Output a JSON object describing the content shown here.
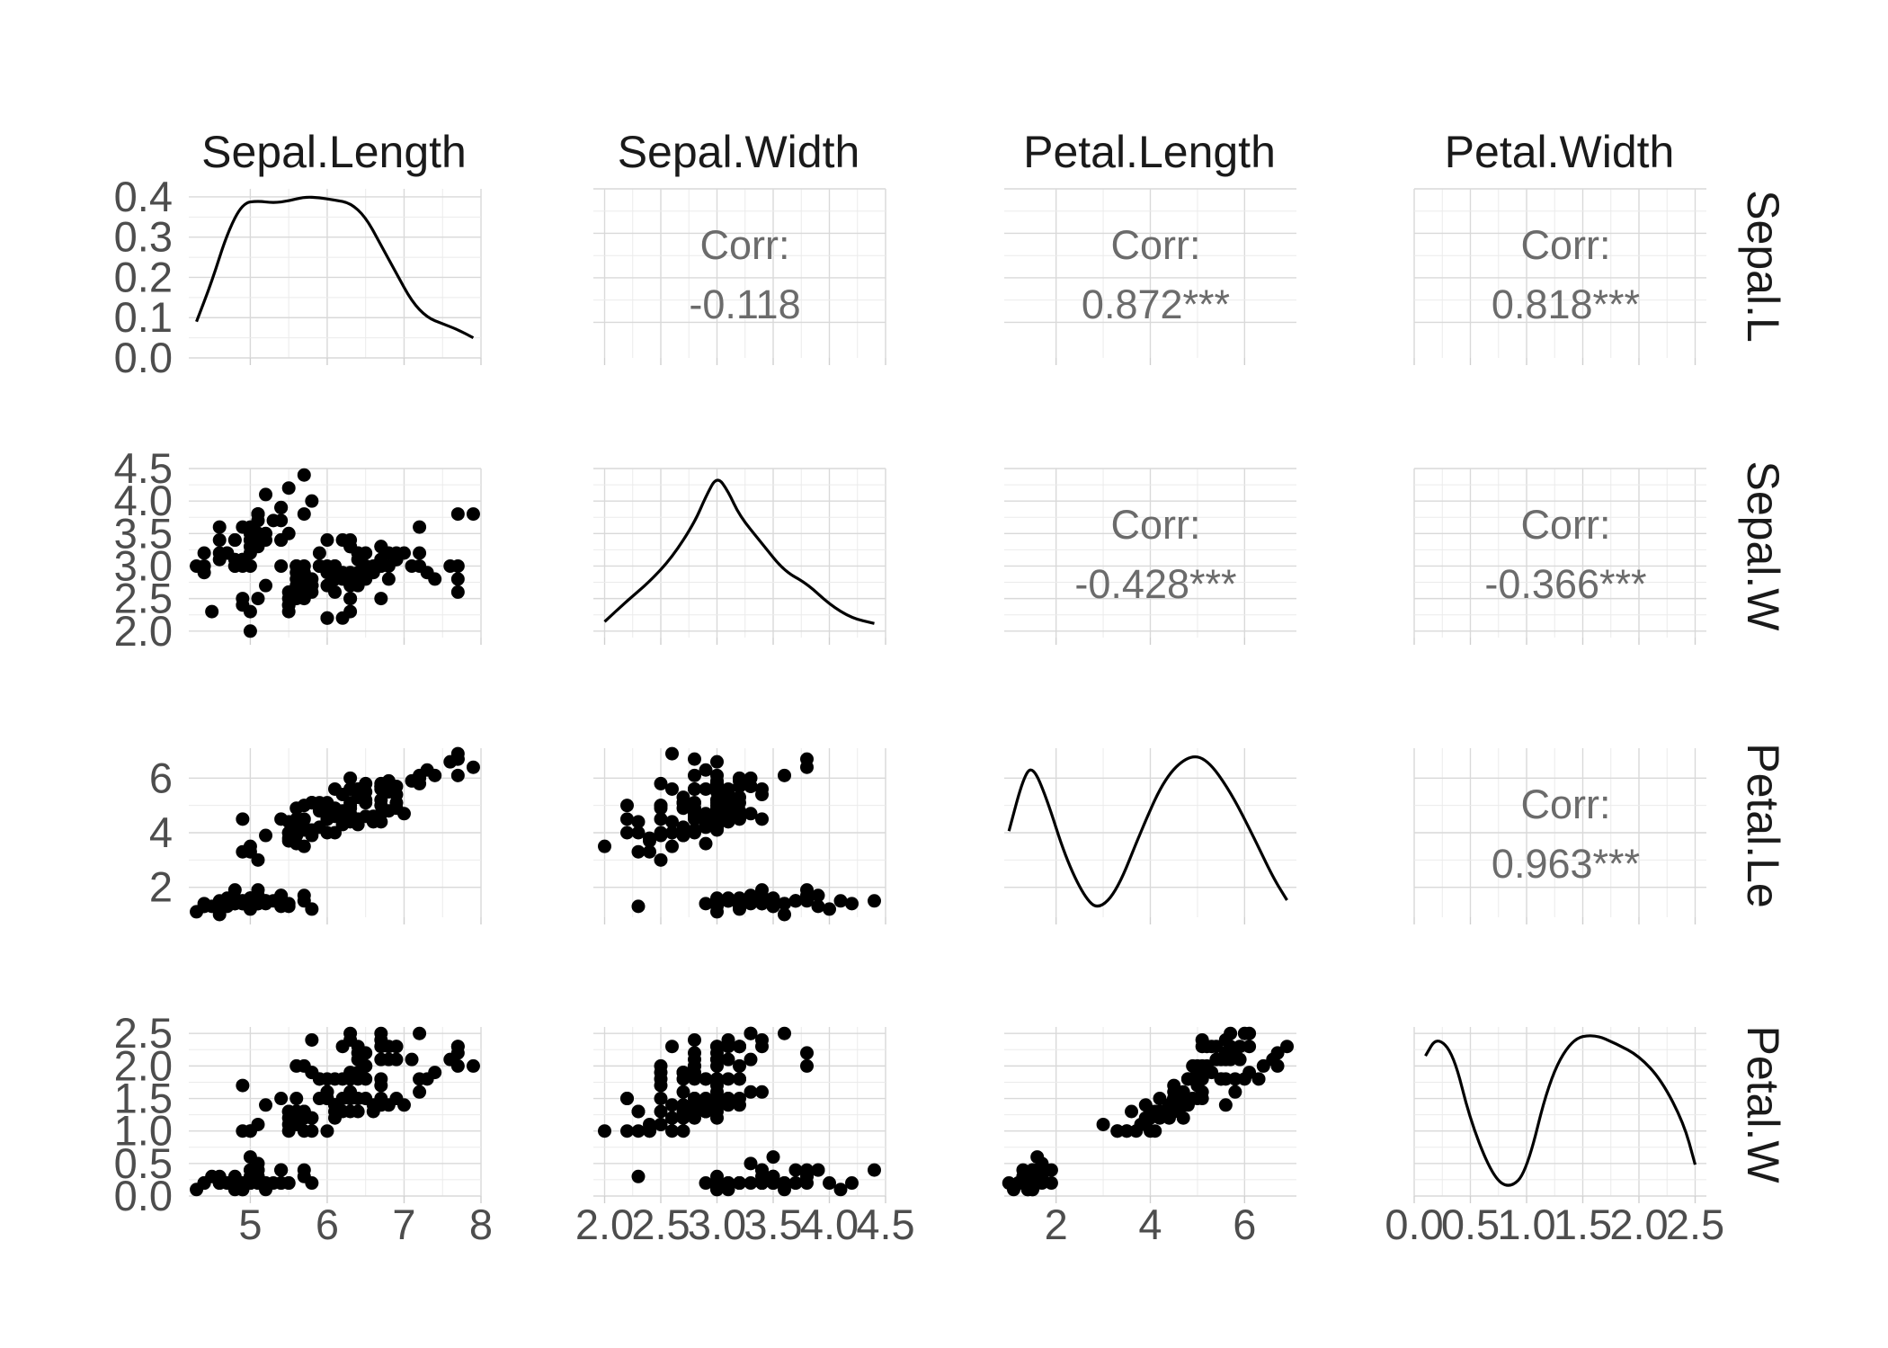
{
  "figure": {
    "variables": [
      "Sepal.Length",
      "Sepal.Width",
      "Petal.Length",
      "Petal.Width"
    ],
    "row_strip_labels": [
      "Sepal.L",
      "Sepal.W",
      "Petal.Le",
      "Petal.W"
    ],
    "corr_label": "Corr:"
  },
  "chart_data": {
    "type": "scatter",
    "title": "",
    "layout": "pairs-matrix",
    "axes": {
      "Sepal.Length": {
        "range": [
          4.2,
          8.0
        ],
        "ticks": [
          5,
          6,
          7,
          8
        ],
        "tick_labels": [
          "5",
          "6",
          "7",
          "8"
        ]
      },
      "Sepal.Width": {
        "range": [
          1.9,
          4.5
        ],
        "ticks": [
          2.0,
          2.5,
          3.0,
          3.5,
          4.0,
          4.5
        ],
        "tick_labels": [
          "2.0",
          "2.5",
          "3.0",
          "3.5",
          "4.0",
          "4.5"
        ]
      },
      "Petal.Length": {
        "range": [
          0.9,
          7.1
        ],
        "ticks": [
          2,
          4,
          6
        ],
        "tick_labels": [
          "2",
          "4",
          "6"
        ]
      },
      "Petal.Width": {
        "range": [
          0.0,
          2.6
        ],
        "ticks": [
          0.0,
          0.5,
          1.0,
          1.5,
          2.0,
          2.5
        ],
        "tick_labels": [
          "0.0",
          "0.5",
          "1.0",
          "1.5",
          "2.0",
          "2.5"
        ]
      }
    },
    "density_y_axis": {
      "range": [
        0,
        0.42
      ],
      "ticks": [
        0.0,
        0.1,
        0.2,
        0.3,
        0.4
      ],
      "tick_labels": [
        "0.0",
        "0.1",
        "0.2",
        "0.3",
        "0.4"
      ]
    },
    "correlations": [
      {
        "row": "Sepal.Length",
        "col": "Sepal.Width",
        "value": "-0.118"
      },
      {
        "row": "Sepal.Length",
        "col": "Petal.Length",
        "value": "0.872***"
      },
      {
        "row": "Sepal.Length",
        "col": "Petal.Width",
        "value": "0.818***"
      },
      {
        "row": "Sepal.Width",
        "col": "Petal.Length",
        "value": "-0.428***"
      },
      {
        "row": "Sepal.Width",
        "col": "Petal.Width",
        "value": "-0.366***"
      },
      {
        "row": "Petal.Length",
        "col": "Petal.Width",
        "value": "0.963***"
      }
    ],
    "densities": {
      "Sepal.Length": [
        [
          4.3,
          0.09
        ],
        [
          4.5,
          0.19
        ],
        [
          4.7,
          0.31
        ],
        [
          4.9,
          0.385
        ],
        [
          5.1,
          0.39
        ],
        [
          5.3,
          0.385
        ],
        [
          5.5,
          0.39
        ],
        [
          5.7,
          0.4
        ],
        [
          5.9,
          0.398
        ],
        [
          6.1,
          0.392
        ],
        [
          6.3,
          0.385
        ],
        [
          6.5,
          0.35
        ],
        [
          6.7,
          0.28
        ],
        [
          6.9,
          0.21
        ],
        [
          7.1,
          0.14
        ],
        [
          7.3,
          0.1
        ],
        [
          7.5,
          0.085
        ],
        [
          7.7,
          0.07
        ],
        [
          7.9,
          0.05
        ]
      ],
      "Sepal.Width": [
        [
          2.0,
          0.05
        ],
        [
          2.2,
          0.17
        ],
        [
          2.4,
          0.28
        ],
        [
          2.6,
          0.42
        ],
        [
          2.8,
          0.62
        ],
        [
          2.9,
          0.77
        ],
        [
          3.0,
          0.89
        ],
        [
          3.1,
          0.8
        ],
        [
          3.2,
          0.66
        ],
        [
          3.4,
          0.5
        ],
        [
          3.6,
          0.34
        ],
        [
          3.8,
          0.27
        ],
        [
          4.0,
          0.15
        ],
        [
          4.2,
          0.07
        ],
        [
          4.4,
          0.04
        ]
      ],
      "Petal.Length": [
        [
          1.0,
          0.12
        ],
        [
          1.3,
          0.2
        ],
        [
          1.5,
          0.22
        ],
        [
          1.8,
          0.17
        ],
        [
          2.2,
          0.08
        ],
        [
          2.6,
          0.02
        ],
        [
          2.9,
          0.0
        ],
        [
          3.3,
          0.03
        ],
        [
          3.8,
          0.12
        ],
        [
          4.3,
          0.2
        ],
        [
          4.8,
          0.235
        ],
        [
          5.2,
          0.23
        ],
        [
          5.7,
          0.18
        ],
        [
          6.2,
          0.11
        ],
        [
          6.6,
          0.05
        ],
        [
          6.9,
          0.015
        ]
      ],
      "Petal.Width": [
        [
          0.1,
          0.55
        ],
        [
          0.2,
          0.63
        ],
        [
          0.35,
          0.56
        ],
        [
          0.5,
          0.28
        ],
        [
          0.7,
          0.05
        ],
        [
          0.85,
          0.0
        ],
        [
          1.0,
          0.07
        ],
        [
          1.2,
          0.45
        ],
        [
          1.4,
          0.62
        ],
        [
          1.6,
          0.64
        ],
        [
          1.8,
          0.6
        ],
        [
          2.0,
          0.55
        ],
        [
          2.2,
          0.45
        ],
        [
          2.4,
          0.27
        ],
        [
          2.5,
          0.1
        ]
      ]
    },
    "observations": {
      "columns": [
        "Sepal.Length",
        "Sepal.Width",
        "Petal.Length",
        "Petal.Width"
      ],
      "rows": [
        [
          5.1,
          3.5,
          1.4,
          0.2
        ],
        [
          4.9,
          3.0,
          1.4,
          0.2
        ],
        [
          4.7,
          3.2,
          1.3,
          0.2
        ],
        [
          4.6,
          3.1,
          1.5,
          0.2
        ],
        [
          5.0,
          3.6,
          1.4,
          0.2
        ],
        [
          5.4,
          3.9,
          1.7,
          0.4
        ],
        [
          4.6,
          3.4,
          1.4,
          0.3
        ],
        [
          5.0,
          3.4,
          1.5,
          0.2
        ],
        [
          4.4,
          2.9,
          1.4,
          0.2
        ],
        [
          4.9,
          3.1,
          1.5,
          0.1
        ],
        [
          5.4,
          3.7,
          1.5,
          0.2
        ],
        [
          4.8,
          3.4,
          1.6,
          0.2
        ],
        [
          4.8,
          3.0,
          1.4,
          0.1
        ],
        [
          4.3,
          3.0,
          1.1,
          0.1
        ],
        [
          5.8,
          4.0,
          1.2,
          0.2
        ],
        [
          5.7,
          4.4,
          1.5,
          0.4
        ],
        [
          5.4,
          3.9,
          1.3,
          0.4
        ],
        [
          5.1,
          3.5,
          1.4,
          0.3
        ],
        [
          5.7,
          3.8,
          1.7,
          0.3
        ],
        [
          5.1,
          3.8,
          1.5,
          0.3
        ],
        [
          5.4,
          3.4,
          1.7,
          0.2
        ],
        [
          5.1,
          3.7,
          1.5,
          0.4
        ],
        [
          4.6,
          3.6,
          1.0,
          0.2
        ],
        [
          5.1,
          3.3,
          1.7,
          0.5
        ],
        [
          4.8,
          3.4,
          1.9,
          0.2
        ],
        [
          5.0,
          3.0,
          1.6,
          0.2
        ],
        [
          5.0,
          3.4,
          1.6,
          0.4
        ],
        [
          5.2,
          3.5,
          1.5,
          0.2
        ],
        [
          5.2,
          3.4,
          1.4,
          0.2
        ],
        [
          4.7,
          3.2,
          1.6,
          0.2
        ],
        [
          4.8,
          3.1,
          1.6,
          0.2
        ],
        [
          5.4,
          3.4,
          1.5,
          0.4
        ],
        [
          5.2,
          4.1,
          1.5,
          0.1
        ],
        [
          5.5,
          4.2,
          1.4,
          0.2
        ],
        [
          4.9,
          3.1,
          1.5,
          0.2
        ],
        [
          5.0,
          3.2,
          1.2,
          0.2
        ],
        [
          5.5,
          3.5,
          1.3,
          0.2
        ],
        [
          4.9,
          3.6,
          1.4,
          0.1
        ],
        [
          4.4,
          3.0,
          1.3,
          0.2
        ],
        [
          5.1,
          3.4,
          1.5,
          0.2
        ],
        [
          5.0,
          3.5,
          1.3,
          0.3
        ],
        [
          4.5,
          2.3,
          1.3,
          0.3
        ],
        [
          4.4,
          3.2,
          1.3,
          0.2
        ],
        [
          5.0,
          3.5,
          1.6,
          0.6
        ],
        [
          5.1,
          3.8,
          1.9,
          0.4
        ],
        [
          4.8,
          3.0,
          1.4,
          0.3
        ],
        [
          5.1,
          3.8,
          1.6,
          0.2
        ],
        [
          4.6,
          3.2,
          1.4,
          0.2
        ],
        [
          5.3,
          3.7,
          1.5,
          0.2
        ],
        [
          5.0,
          3.3,
          1.4,
          0.2
        ],
        [
          7.0,
          3.2,
          4.7,
          1.4
        ],
        [
          6.4,
          3.2,
          4.5,
          1.5
        ],
        [
          6.9,
          3.1,
          4.9,
          1.5
        ],
        [
          5.5,
          2.3,
          4.0,
          1.3
        ],
        [
          6.5,
          2.8,
          4.6,
          1.5
        ],
        [
          5.7,
          2.8,
          4.5,
          1.3
        ],
        [
          6.3,
          3.3,
          4.7,
          1.6
        ],
        [
          4.9,
          2.4,
          3.3,
          1.0
        ],
        [
          6.6,
          2.9,
          4.6,
          1.3
        ],
        [
          5.2,
          2.7,
          3.9,
          1.4
        ],
        [
          5.0,
          2.0,
          3.5,
          1.0
        ],
        [
          5.9,
          3.0,
          4.2,
          1.5
        ],
        [
          6.0,
          2.2,
          4.0,
          1.0
        ],
        [
          6.1,
          2.9,
          4.7,
          1.4
        ],
        [
          5.6,
          2.9,
          3.6,
          1.3
        ],
        [
          6.7,
          3.1,
          4.4,
          1.4
        ],
        [
          5.6,
          3.0,
          4.5,
          1.5
        ],
        [
          5.8,
          2.7,
          4.1,
          1.0
        ],
        [
          6.2,
          2.2,
          4.5,
          1.5
        ],
        [
          5.6,
          2.5,
          3.9,
          1.1
        ],
        [
          5.9,
          3.2,
          4.8,
          1.8
        ],
        [
          6.1,
          2.8,
          4.0,
          1.3
        ],
        [
          6.3,
          2.5,
          4.9,
          1.5
        ],
        [
          6.1,
          2.8,
          4.7,
          1.2
        ],
        [
          6.4,
          2.9,
          4.3,
          1.3
        ],
        [
          6.6,
          3.0,
          4.4,
          1.4
        ],
        [
          6.8,
          2.8,
          4.8,
          1.4
        ],
        [
          6.7,
          3.0,
          5.0,
          1.7
        ],
        [
          6.0,
          2.9,
          4.5,
          1.5
        ],
        [
          5.7,
          2.6,
          3.5,
          1.0
        ],
        [
          5.5,
          2.4,
          3.8,
          1.1
        ],
        [
          5.5,
          2.4,
          3.7,
          1.0
        ],
        [
          5.8,
          2.7,
          3.9,
          1.2
        ],
        [
          6.0,
          2.7,
          5.1,
          1.6
        ],
        [
          5.4,
          3.0,
          4.5,
          1.5
        ],
        [
          6.0,
          3.4,
          4.5,
          1.6
        ],
        [
          6.7,
          3.1,
          4.7,
          1.5
        ],
        [
          6.3,
          2.3,
          4.4,
          1.3
        ],
        [
          5.6,
          3.0,
          4.1,
          1.3
        ],
        [
          5.5,
          2.5,
          4.0,
          1.3
        ],
        [
          5.5,
          2.6,
          4.4,
          1.2
        ],
        [
          6.1,
          3.0,
          4.6,
          1.4
        ],
        [
          5.8,
          2.6,
          4.0,
          1.2
        ],
        [
          5.0,
          2.3,
          3.3,
          1.0
        ],
        [
          5.6,
          2.7,
          4.2,
          1.3
        ],
        [
          5.7,
          3.0,
          4.2,
          1.2
        ],
        [
          5.7,
          2.9,
          4.2,
          1.3
        ],
        [
          6.2,
          2.9,
          4.3,
          1.3
        ],
        [
          5.1,
          2.5,
          3.0,
          1.1
        ],
        [
          5.7,
          2.8,
          4.1,
          1.3
        ],
        [
          6.3,
          3.3,
          6.0,
          2.5
        ],
        [
          5.8,
          2.7,
          5.1,
          1.9
        ],
        [
          7.1,
          3.0,
          5.9,
          2.1
        ],
        [
          6.3,
          2.9,
          5.6,
          1.8
        ],
        [
          6.5,
          3.0,
          5.8,
          2.2
        ],
        [
          7.6,
          3.0,
          6.6,
          2.1
        ],
        [
          4.9,
          2.5,
          4.5,
          1.7
        ],
        [
          7.3,
          2.9,
          6.3,
          1.8
        ],
        [
          6.7,
          2.5,
          5.8,
          1.8
        ],
        [
          7.2,
          3.6,
          6.1,
          2.5
        ],
        [
          6.5,
          3.2,
          5.1,
          2.0
        ],
        [
          6.4,
          2.7,
          5.3,
          1.9
        ],
        [
          6.8,
          3.0,
          5.5,
          2.1
        ],
        [
          5.7,
          2.5,
          5.0,
          2.0
        ],
        [
          5.8,
          2.8,
          5.1,
          2.4
        ],
        [
          6.4,
          3.2,
          5.3,
          2.3
        ],
        [
          6.5,
          3.0,
          5.5,
          1.8
        ],
        [
          7.7,
          3.8,
          6.7,
          2.2
        ],
        [
          7.7,
          2.6,
          6.9,
          2.3
        ],
        [
          6.0,
          2.2,
          5.0,
          1.5
        ],
        [
          6.9,
          3.2,
          5.7,
          2.3
        ],
        [
          5.6,
          2.8,
          4.9,
          2.0
        ],
        [
          7.7,
          2.8,
          6.7,
          2.0
        ],
        [
          6.3,
          2.7,
          4.9,
          1.8
        ],
        [
          6.7,
          3.3,
          5.7,
          2.1
        ],
        [
          7.2,
          3.2,
          6.0,
          1.8
        ],
        [
          6.2,
          2.8,
          4.8,
          1.8
        ],
        [
          6.1,
          3.0,
          4.9,
          1.8
        ],
        [
          6.4,
          2.8,
          5.6,
          2.1
        ],
        [
          7.2,
          3.0,
          5.8,
          1.6
        ],
        [
          7.4,
          2.8,
          6.1,
          1.9
        ],
        [
          7.9,
          3.8,
          6.4,
          2.0
        ],
        [
          6.4,
          2.8,
          5.6,
          2.2
        ],
        [
          6.3,
          2.8,
          5.1,
          1.5
        ],
        [
          6.1,
          2.6,
          5.6,
          1.4
        ],
        [
          7.7,
          3.0,
          6.1,
          2.3
        ],
        [
          6.3,
          3.4,
          5.6,
          2.4
        ],
        [
          6.4,
          3.1,
          5.5,
          1.8
        ],
        [
          6.0,
          3.0,
          4.8,
          1.8
        ],
        [
          6.9,
          3.1,
          5.4,
          2.1
        ],
        [
          6.7,
          3.1,
          5.6,
          2.4
        ],
        [
          6.9,
          3.1,
          5.1,
          2.3
        ],
        [
          5.8,
          2.7,
          5.1,
          1.9
        ],
        [
          6.8,
          3.2,
          5.9,
          2.3
        ],
        [
          6.7,
          3.3,
          5.7,
          2.5
        ],
        [
          6.7,
          3.0,
          5.2,
          2.3
        ],
        [
          6.3,
          2.5,
          5.0,
          1.9
        ],
        [
          6.5,
          3.0,
          5.2,
          2.0
        ],
        [
          6.2,
          3.4,
          5.4,
          2.3
        ],
        [
          5.9,
          3.0,
          5.1,
          1.8
        ]
      ]
    }
  }
}
